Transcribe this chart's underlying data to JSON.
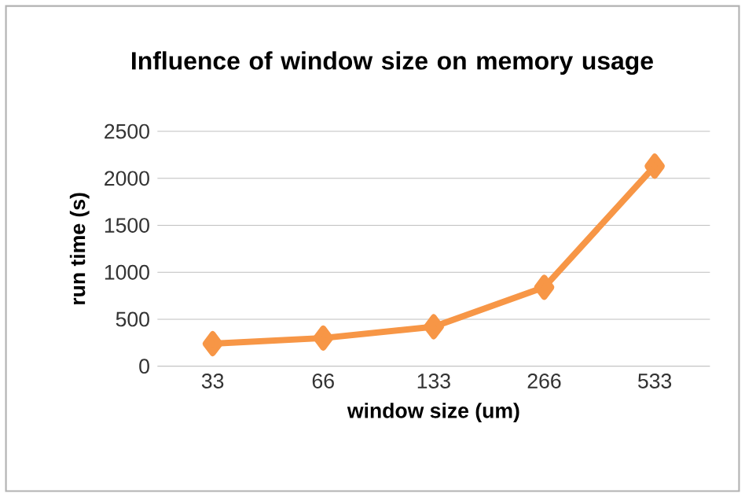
{
  "chart_data": {
    "type": "line",
    "title": "Influence of window size on memory usage",
    "xlabel": "window size (um)",
    "ylabel": "run time (s)",
    "categories": [
      "33",
      "66",
      "133",
      "266",
      "533"
    ],
    "series": [
      {
        "color": "#f79646",
        "values": [
          240,
          300,
          420,
          840,
          2130
        ]
      }
    ],
    "ylim": [
      0,
      2500
    ],
    "yticks": [
      0,
      500,
      1000,
      1500,
      2000,
      2500
    ],
    "grid": "y",
    "marker": "diamond",
    "line_style": "solid"
  }
}
